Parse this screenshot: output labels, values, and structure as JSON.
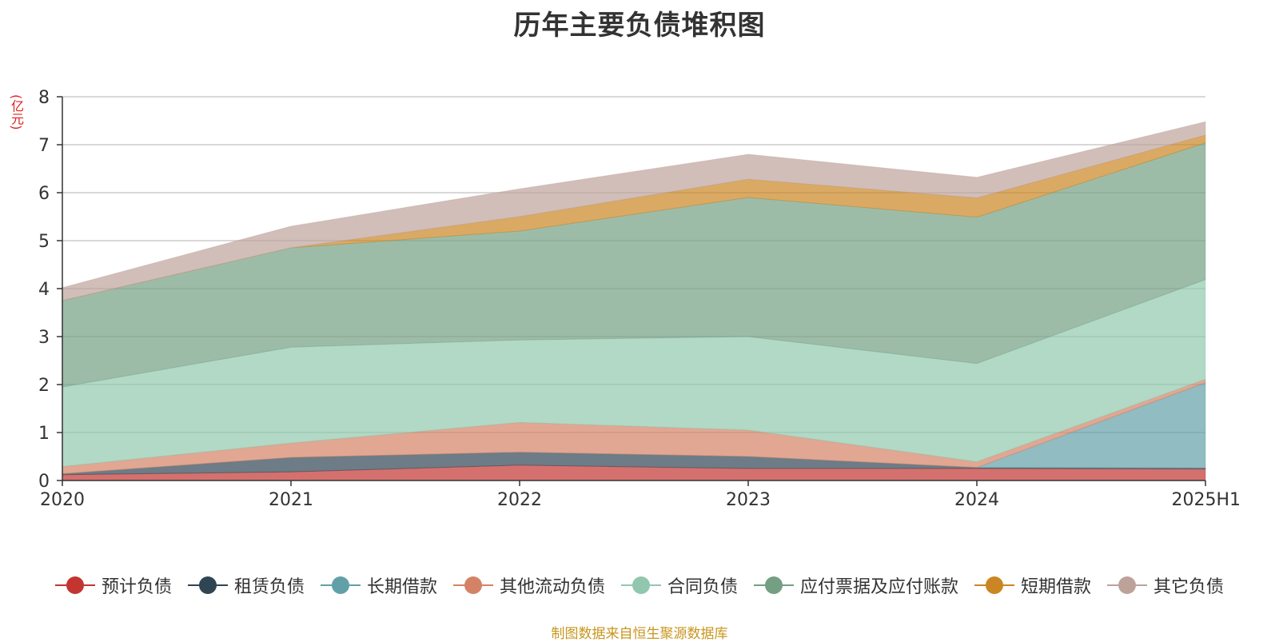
{
  "chart_data": {
    "type": "area",
    "title": "历年主要负债堆积图",
    "unit_label": "(亿元)",
    "source_note": "制图数据来自恒生聚源数据库",
    "categories": [
      "2020",
      "2021",
      "2022",
      "2023",
      "2024",
      "2025H1"
    ],
    "ylim": [
      0,
      8
    ],
    "yticks": [
      0,
      1,
      2,
      3,
      4,
      5,
      6,
      7,
      8
    ],
    "grid": true,
    "stacked": true,
    "legend_position": "bottom",
    "series": [
      {
        "name": "预计负债",
        "color": "#c23531",
        "values": [
          0.12,
          0.18,
          0.32,
          0.25,
          0.25,
          0.24
        ]
      },
      {
        "name": "租赁负债",
        "color": "#2f4554",
        "values": [
          0.02,
          0.3,
          0.27,
          0.25,
          0.02,
          0.02
        ]
      },
      {
        "name": "长期借款",
        "color": "#61a0a8",
        "values": [
          0.0,
          0.0,
          0.0,
          0.0,
          0.0,
          1.78
        ]
      },
      {
        "name": "其他流动负债",
        "color": "#d48265",
        "values": [
          0.15,
          0.3,
          0.62,
          0.55,
          0.12,
          0.07
        ]
      },
      {
        "name": "合同负债",
        "color": "#91c7ae",
        "values": [
          1.66,
          2.0,
          1.72,
          1.95,
          2.05,
          2.08
        ]
      },
      {
        "name": "应付票据及应付账款",
        "color": "#749f83",
        "values": [
          1.8,
          2.07,
          2.27,
          2.9,
          3.05,
          2.85
        ]
      },
      {
        "name": "短期借款",
        "color": "#ca8622",
        "values": [
          0.0,
          0.0,
          0.3,
          0.38,
          0.4,
          0.16
        ]
      },
      {
        "name": "其它负债",
        "color": "#bda29a",
        "values": [
          0.27,
          0.45,
          0.58,
          0.52,
          0.43,
          0.28
        ]
      }
    ]
  }
}
